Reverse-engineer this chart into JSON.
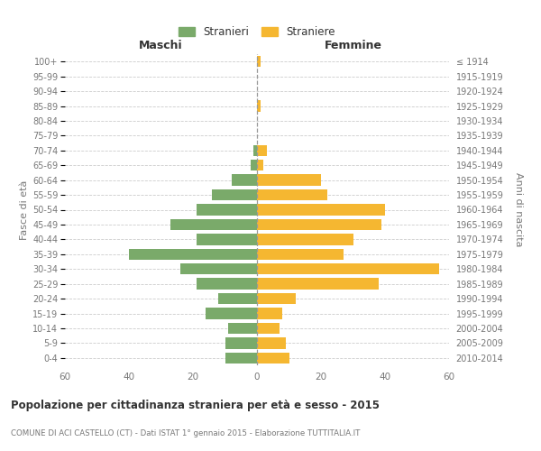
{
  "age_groups": [
    "0-4",
    "5-9",
    "10-14",
    "15-19",
    "20-24",
    "25-29",
    "30-34",
    "35-39",
    "40-44",
    "45-49",
    "50-54",
    "55-59",
    "60-64",
    "65-69",
    "70-74",
    "75-79",
    "80-84",
    "85-89",
    "90-94",
    "95-99",
    "100+"
  ],
  "birth_years": [
    "2010-2014",
    "2005-2009",
    "2000-2004",
    "1995-1999",
    "1990-1994",
    "1985-1989",
    "1980-1984",
    "1975-1979",
    "1970-1974",
    "1965-1969",
    "1960-1964",
    "1955-1959",
    "1950-1954",
    "1945-1949",
    "1940-1944",
    "1935-1939",
    "1930-1934",
    "1925-1929",
    "1920-1924",
    "1915-1919",
    "≤ 1914"
  ],
  "maschi": [
    10,
    10,
    9,
    16,
    12,
    19,
    24,
    40,
    19,
    27,
    19,
    14,
    8,
    2,
    1,
    0,
    0,
    0,
    0,
    0,
    0
  ],
  "femmine": [
    10,
    9,
    7,
    8,
    12,
    38,
    57,
    27,
    30,
    39,
    40,
    22,
    20,
    2,
    3,
    0,
    0,
    1,
    0,
    0,
    1
  ],
  "color_maschi": "#7aaa6a",
  "color_femmine": "#f5b731",
  "title": "Popolazione per cittadinanza straniera per età e sesso - 2015",
  "subtitle": "COMUNE DI ACI CASTELLO (CT) - Dati ISTAT 1° gennaio 2015 - Elaborazione TUTTITALIA.IT",
  "xlabel_maschi": "Maschi",
  "xlabel_femmine": "Femmine",
  "ylabel_left": "Fasce di età",
  "ylabel_right": "Anni di nascita",
  "xlim": 60,
  "legend_stranieri": "Stranieri",
  "legend_straniere": "Straniere",
  "background_color": "#ffffff",
  "grid_color": "#cccccc",
  "text_color": "#777777",
  "title_color": "#333333",
  "subtitle_color": "#777777"
}
